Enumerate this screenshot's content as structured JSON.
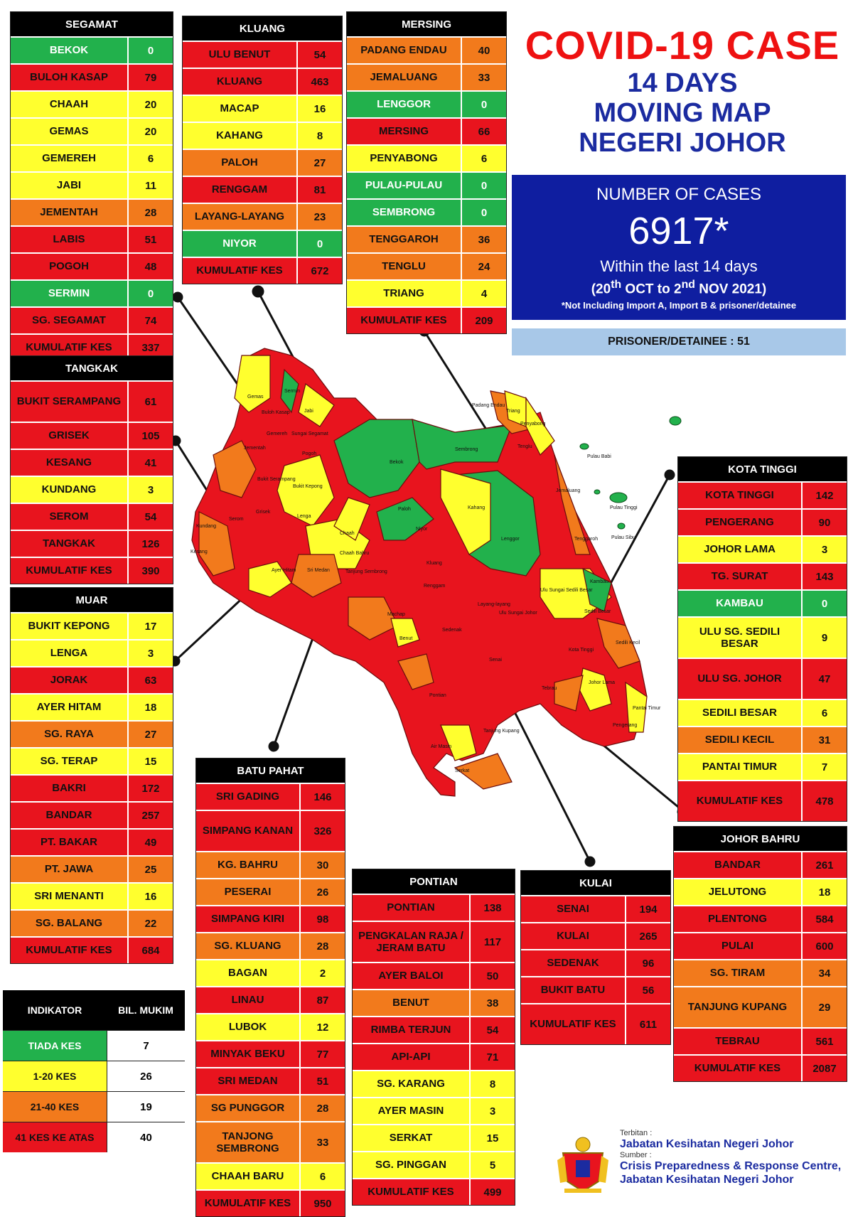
{
  "title": {
    "main": "COVID-19 CASE",
    "line1": "14 DAYS",
    "line2": "MOVING MAP",
    "line3": "NEGERI JOHOR"
  },
  "cases": {
    "label": "NUMBER OF CASES",
    "number": "6917*",
    "within": "Within the last 14 days",
    "range_open": "(20",
    "range_sup1": "th",
    "range_mid": " OCT to 2",
    "range_sup2": "nd",
    "range_close": " NOV 2021)",
    "note": "*Not Including Import A, Import B & prisoner/detainee"
  },
  "prisoner": "PRISONER/DETAINEE : 51",
  "colors": {
    "green": "#22b14c",
    "yellow": "#ffff2e",
    "orange": "#f27a1c",
    "red": "#e8141e"
  },
  "districts": [
    {
      "id": "segamat",
      "title": "SEGAMAT",
      "rows": [
        {
          "name": "BEKOK",
          "value": "0",
          "color": "green"
        },
        {
          "name": "BULOH KASAP",
          "value": "79",
          "color": "red"
        },
        {
          "name": "CHAAH",
          "value": "20",
          "color": "yellow"
        },
        {
          "name": "GEMAS",
          "value": "20",
          "color": "yellow"
        },
        {
          "name": "GEMEREH",
          "value": "6",
          "color": "yellow"
        },
        {
          "name": "JABI",
          "value": "11",
          "color": "yellow"
        },
        {
          "name": "JEMENTAH",
          "value": "28",
          "color": "orange"
        },
        {
          "name": "LABIS",
          "value": "51",
          "color": "red"
        },
        {
          "name": "POGOH",
          "value": "48",
          "color": "red"
        },
        {
          "name": "SERMIN",
          "value": "0",
          "color": "green"
        },
        {
          "name": "SG. SEGAMAT",
          "value": "74",
          "color": "red"
        },
        {
          "name": "KUMULATIF KES",
          "value": "337",
          "color": "red"
        }
      ]
    },
    {
      "id": "kluang",
      "title": "KLUANG",
      "rows": [
        {
          "name": "ULU BENUT",
          "value": "54",
          "color": "red"
        },
        {
          "name": "KLUANG",
          "value": "463",
          "color": "red"
        },
        {
          "name": "MACAP",
          "value": "16",
          "color": "yellow"
        },
        {
          "name": "KAHANG",
          "value": "8",
          "color": "yellow"
        },
        {
          "name": "PALOH",
          "value": "27",
          "color": "orange"
        },
        {
          "name": "RENGGAM",
          "value": "81",
          "color": "red"
        },
        {
          "name": "LAYANG-LAYANG",
          "value": "23",
          "color": "orange"
        },
        {
          "name": "NIYOR",
          "value": "0",
          "color": "green"
        },
        {
          "name": "KUMULATIF KES",
          "value": "672",
          "color": "red"
        }
      ]
    },
    {
      "id": "mersing",
      "title": "MERSING",
      "rows": [
        {
          "name": "PADANG ENDAU",
          "value": "40",
          "color": "orange"
        },
        {
          "name": "JEMALUANG",
          "value": "33",
          "color": "orange"
        },
        {
          "name": "LENGGOR",
          "value": "0",
          "color": "green"
        },
        {
          "name": "MERSING",
          "value": "66",
          "color": "red"
        },
        {
          "name": "PENYABONG",
          "value": "6",
          "color": "yellow"
        },
        {
          "name": "PULAU-PULAU",
          "value": "0",
          "color": "green"
        },
        {
          "name": "SEMBRONG",
          "value": "0",
          "color": "green"
        },
        {
          "name": "TENGGAROH",
          "value": "36",
          "color": "orange"
        },
        {
          "name": "TENGLU",
          "value": "24",
          "color": "orange"
        },
        {
          "name": "TRIANG",
          "value": "4",
          "color": "yellow"
        },
        {
          "name": "KUMULATIF KES",
          "value": "209",
          "color": "red"
        }
      ]
    },
    {
      "id": "tangkak",
      "title": "TANGKAK",
      "rows": [
        {
          "name": "BUKIT SERAMPANG",
          "value": "61",
          "color": "red",
          "tall": true
        },
        {
          "name": "GRISEK",
          "value": "105",
          "color": "red"
        },
        {
          "name": "KESANG",
          "value": "41",
          "color": "red"
        },
        {
          "name": "KUNDANG",
          "value": "3",
          "color": "yellow"
        },
        {
          "name": "SEROM",
          "value": "54",
          "color": "red"
        },
        {
          "name": "TANGKAK",
          "value": "126",
          "color": "red"
        },
        {
          "name": "KUMULATIF KES",
          "value": "390",
          "color": "red"
        }
      ]
    },
    {
      "id": "muar",
      "title": "MUAR",
      "rows": [
        {
          "name": "BUKIT KEPONG",
          "value": "17",
          "color": "yellow"
        },
        {
          "name": "LENGA",
          "value": "3",
          "color": "yellow"
        },
        {
          "name": "JORAK",
          "value": "63",
          "color": "red"
        },
        {
          "name": "AYER HITAM",
          "value": "18",
          "color": "yellow"
        },
        {
          "name": "SG. RAYA",
          "value": "27",
          "color": "orange"
        },
        {
          "name": "SG. TERAP",
          "value": "15",
          "color": "yellow"
        },
        {
          "name": "BAKRI",
          "value": "172",
          "color": "red"
        },
        {
          "name": "BANDAR",
          "value": "257",
          "color": "red"
        },
        {
          "name": "PT. BAKAR",
          "value": "49",
          "color": "red"
        },
        {
          "name": "PT. JAWA",
          "value": "25",
          "color": "orange"
        },
        {
          "name": "SRI MENANTI",
          "value": "16",
          "color": "yellow"
        },
        {
          "name": "SG. BALANG",
          "value": "22",
          "color": "orange"
        },
        {
          "name": "KUMULATIF KES",
          "value": "684",
          "color": "red"
        }
      ]
    },
    {
      "id": "batupahat",
      "title": "BATU PAHAT",
      "rows": [
        {
          "name": "SRI GADING",
          "value": "146",
          "color": "red"
        },
        {
          "name": "SIMPANG KANAN",
          "value": "326",
          "color": "red",
          "tall": true
        },
        {
          "name": "KG. BAHRU",
          "value": "30",
          "color": "orange"
        },
        {
          "name": "PESERAI",
          "value": "26",
          "color": "orange"
        },
        {
          "name": "SIMPANG KIRI",
          "value": "98",
          "color": "red"
        },
        {
          "name": "SG. KLUANG",
          "value": "28",
          "color": "orange"
        },
        {
          "name": "BAGAN",
          "value": "2",
          "color": "yellow"
        },
        {
          "name": "LINAU",
          "value": "87",
          "color": "red"
        },
        {
          "name": "LUBOK",
          "value": "12",
          "color": "yellow"
        },
        {
          "name": "MINYAK BEKU",
          "value": "77",
          "color": "red"
        },
        {
          "name": "SRI MEDAN",
          "value": "51",
          "color": "red"
        },
        {
          "name": "SG PUNGGOR",
          "value": "28",
          "color": "orange"
        },
        {
          "name": "TANJONG SEMBRONG",
          "value": "33",
          "color": "orange",
          "tall": true
        },
        {
          "name": "CHAAH BARU",
          "value": "6",
          "color": "yellow"
        },
        {
          "name": "KUMULATIF KES",
          "value": "950",
          "color": "red"
        }
      ]
    },
    {
      "id": "pontian",
      "title": "PONTIAN",
      "rows": [
        {
          "name": "PONTIAN",
          "value": "138",
          "color": "red"
        },
        {
          "name": "PENGKALAN RAJA / JERAM BATU",
          "value": "117",
          "color": "red",
          "tall": true
        },
        {
          "name": "AYER BALOI",
          "value": "50",
          "color": "red"
        },
        {
          "name": "BENUT",
          "value": "38",
          "color": "orange"
        },
        {
          "name": "RIMBA TERJUN",
          "value": "54",
          "color": "red"
        },
        {
          "name": "API-API",
          "value": "71",
          "color": "red"
        },
        {
          "name": "SG. KARANG",
          "value": "8",
          "color": "yellow"
        },
        {
          "name": "AYER MASIN",
          "value": "3",
          "color": "yellow"
        },
        {
          "name": "SERKAT",
          "value": "15",
          "color": "yellow"
        },
        {
          "name": "SG. PINGGAN",
          "value": "5",
          "color": "yellow"
        },
        {
          "name": "KUMULATIF KES",
          "value": "499",
          "color": "red"
        }
      ]
    },
    {
      "id": "kulai",
      "title": "KULAI",
      "rows": [
        {
          "name": "SENAI",
          "value": "194",
          "color": "red"
        },
        {
          "name": "KULAI",
          "value": "265",
          "color": "red"
        },
        {
          "name": "SEDENAK",
          "value": "96",
          "color": "red"
        },
        {
          "name": "BUKIT BATU",
          "value": "56",
          "color": "red"
        },
        {
          "name": "KUMULATIF KES",
          "value": "611",
          "color": "red",
          "tall": true
        }
      ]
    },
    {
      "id": "kotatinggi",
      "title": "KOTA TINGGI",
      "rows": [
        {
          "name": "KOTA TINGGI",
          "value": "142",
          "color": "red"
        },
        {
          "name": "PENGERANG",
          "value": "90",
          "color": "red"
        },
        {
          "name": "JOHOR LAMA",
          "value": "3",
          "color": "yellow"
        },
        {
          "name": "TG. SURAT",
          "value": "143",
          "color": "red"
        },
        {
          "name": "KAMBAU",
          "value": "0",
          "color": "green"
        },
        {
          "name": "ULU SG. SEDILI BESAR",
          "value": "9",
          "color": "yellow",
          "tall": true
        },
        {
          "name": "ULU  SG. JOHOR",
          "value": "47",
          "color": "red",
          "tall": true
        },
        {
          "name": "SEDILI BESAR",
          "value": "6",
          "color": "yellow"
        },
        {
          "name": "SEDILI KECIL",
          "value": "31",
          "color": "orange"
        },
        {
          "name": "PANTAI TIMUR",
          "value": "7",
          "color": "yellow"
        },
        {
          "name": "KUMULATIF KES",
          "value": "478",
          "color": "red",
          "tall": true
        }
      ]
    },
    {
      "id": "johorbahru",
      "title": "JOHOR BAHRU",
      "rows": [
        {
          "name": "BANDAR",
          "value": "261",
          "color": "red"
        },
        {
          "name": "JELUTONG",
          "value": "18",
          "color": "yellow"
        },
        {
          "name": "PLENTONG",
          "value": "584",
          "color": "red"
        },
        {
          "name": "PULAI",
          "value": "600",
          "color": "red"
        },
        {
          "name": "SG. TIRAM",
          "value": "34",
          "color": "orange"
        },
        {
          "name": "TANJUNG KUPANG",
          "value": "29",
          "color": "orange",
          "tall": true
        },
        {
          "name": "TEBRAU",
          "value": "561",
          "color": "red"
        },
        {
          "name": "KUMULATIF KES",
          "value": "2087",
          "color": "red"
        }
      ]
    }
  ],
  "legend": {
    "col1": "INDIKATOR",
    "col2": "BIL. MUKIM",
    "rows": [
      {
        "label": "TIADA KES",
        "count": "7",
        "color": "green"
      },
      {
        "label": "1-20 KES",
        "count": "26",
        "color": "yellow"
      },
      {
        "label": "21-40 KES",
        "count": "19",
        "color": "orange"
      },
      {
        "label": "41 KES KE ATAS",
        "count": "40",
        "color": "red"
      }
    ]
  },
  "map_labels": [
    "Gemas",
    "Buloh Kasap",
    "Sermin",
    "Jabi",
    "Gemereh",
    "Sungai Segamat",
    "Jementah",
    "Pogoh",
    "Bekok",
    "Sembrong",
    "Padang Endau",
    "Triang",
    "Penyabong",
    "Tenglu",
    "Pulau Babi",
    "Bukit Serampang",
    "Bukit Kepong",
    "Lenga",
    "Chaah",
    "Paloh",
    "Kahang",
    "Niyor",
    "Pulau Tinggi",
    "Pulau Sibu",
    "Jemaluang",
    "Kundang",
    "Grisek",
    "Serom",
    "Chaah Bahru",
    "Kluang",
    "Lenggor",
    "Tenggaroh",
    "Kesang",
    "Ayer Hitam",
    "Sri Medan",
    "Tanjung Sembrong",
    "Renggam",
    "Kambau",
    "Machap",
    "Layang-layang",
    "Ulu Sungai Sedili Besar",
    "Sedili Besar",
    "Ulu Sungai Johor",
    "Sedili Kecil",
    "Kota Tinggi",
    "Johor Lama",
    "Pantai Timur",
    "Sedenak",
    "Senai",
    "Pontian",
    "Benut",
    "Tebrau",
    "Pengerang",
    "Air Masin",
    "Serkat",
    "Tanjung Kupang"
  ],
  "footer": {
    "terbitan_label": "Terbitan :",
    "terbitan": "Jabatan Kesihatan Negeri Johor",
    "sumber_label": "Sumber :",
    "sumber1": "Crisis Preparedness & Response Centre,",
    "sumber2": "Jabatan Kesihatan Negeri Johor"
  }
}
